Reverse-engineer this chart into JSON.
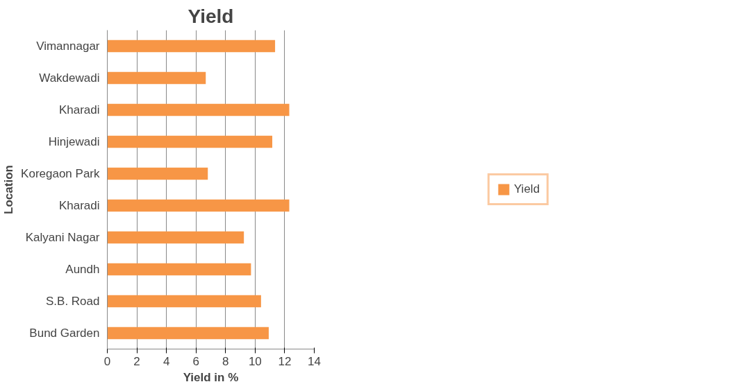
{
  "chart_data": {
    "type": "bar",
    "orientation": "horizontal",
    "title": "Yield",
    "xlabel": "Yield in %",
    "ylabel": "Location",
    "categories": [
      "Vimannagar",
      "Wakdewadi",
      "Kharadi",
      "Hinjewadi",
      "Koregaon Park",
      "Kharadi",
      "Kalyani Nagar",
      "Aundh",
      "S.B. Road",
      "Bund Garden"
    ],
    "series": [
      {
        "name": "Yield",
        "color": "#f79646",
        "values": [
          11.35,
          6.66,
          12.31,
          11.16,
          6.8,
          12.31,
          9.24,
          9.72,
          10.4,
          10.92
        ]
      }
    ],
    "xlim": [
      0,
      14
    ],
    "xticks": [
      0,
      2,
      4,
      6,
      8,
      10,
      12,
      14
    ],
    "grid": "x",
    "legend": "right"
  }
}
